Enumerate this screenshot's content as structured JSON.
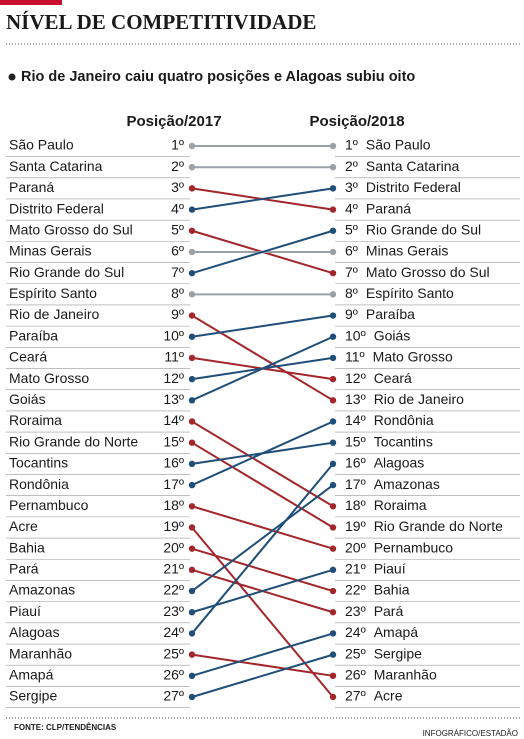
{
  "chart_data": {
    "type": "slope",
    "title": "NÍVEL DE COMPETITIVIDADE",
    "subtitle": "Rio de Janeiro caiu quatro posições e Alagoas subiu oito",
    "left_title": "Posição/2017",
    "right_title": "Posição/2018",
    "ylim": [
      1,
      27
    ],
    "source": "FONTE: CLP/TENDÊNCIAS",
    "credit": "INFOGRÁFICO/ESTADÃO",
    "series": [
      {
        "name": "São Paulo",
        "color": "#9aa0a6",
        "values": [
          1,
          1
        ],
        "value_labels": [
          "1º",
          "1º"
        ]
      },
      {
        "name": "Santa Catarina",
        "color": "#9aa0a6",
        "values": [
          2,
          2
        ],
        "value_labels": [
          "2º",
          "2º"
        ]
      },
      {
        "name": "Paraná",
        "color": "#a3262a",
        "values": [
          3,
          4
        ],
        "value_labels": [
          "3º",
          "4º"
        ]
      },
      {
        "name": "Distrito Federal",
        "color": "#1f4e79",
        "values": [
          4,
          3
        ],
        "value_labels": [
          "4º",
          "3º"
        ]
      },
      {
        "name": "Mato Grosso do Sul",
        "color": "#a3262a",
        "values": [
          5,
          7
        ],
        "value_labels": [
          "5º",
          "7º"
        ]
      },
      {
        "name": "Minas Gerais",
        "color": "#9aa0a6",
        "values": [
          6,
          6
        ],
        "value_labels": [
          "6º",
          "6º"
        ]
      },
      {
        "name": "Rio Grande do Sul",
        "color": "#1f4e79",
        "values": [
          7,
          5
        ],
        "value_labels": [
          "7º",
          "5º"
        ]
      },
      {
        "name": "Espírito Santo",
        "color": "#9aa0a6",
        "values": [
          8,
          8
        ],
        "value_labels": [
          "8º",
          "8º"
        ]
      },
      {
        "name": "Rio de Janeiro",
        "color": "#a3262a",
        "values": [
          9,
          13
        ],
        "value_labels": [
          "9º",
          "13º"
        ]
      },
      {
        "name": "Paraíba",
        "color": "#1f4e79",
        "values": [
          10,
          9
        ],
        "value_labels": [
          "10º",
          "9º"
        ]
      },
      {
        "name": "Ceará",
        "color": "#a3262a",
        "values": [
          11,
          12
        ],
        "value_labels": [
          "11º",
          "12º"
        ]
      },
      {
        "name": "Mato Grosso",
        "color": "#1f4e79",
        "values": [
          12,
          11
        ],
        "value_labels": [
          "12º",
          "11º"
        ]
      },
      {
        "name": "Goiás",
        "color": "#1f4e79",
        "values": [
          13,
          10
        ],
        "value_labels": [
          "13º",
          "10º"
        ]
      },
      {
        "name": "Roraima",
        "color": "#a3262a",
        "values": [
          14,
          18
        ],
        "value_labels": [
          "14º",
          "18º"
        ]
      },
      {
        "name": "Rio Grande do Norte",
        "color": "#a3262a",
        "values": [
          15,
          19
        ],
        "value_labels": [
          "15º",
          "19º"
        ]
      },
      {
        "name": "Tocantins",
        "color": "#1f4e79",
        "values": [
          16,
          15
        ],
        "value_labels": [
          "16º",
          "15º"
        ]
      },
      {
        "name": "Rondônia",
        "color": "#1f4e79",
        "values": [
          17,
          14
        ],
        "value_labels": [
          "17º",
          "14º"
        ]
      },
      {
        "name": "Pernambuco",
        "color": "#a3262a",
        "values": [
          18,
          20
        ],
        "value_labels": [
          "18º",
          "20º"
        ]
      },
      {
        "name": "Acre",
        "color": "#a3262a",
        "values": [
          19,
          27
        ],
        "value_labels": [
          "19º",
          "27º"
        ]
      },
      {
        "name": "Bahia",
        "color": "#a3262a",
        "values": [
          20,
          22
        ],
        "value_labels": [
          "20º",
          "22º"
        ]
      },
      {
        "name": "Pará",
        "color": "#a3262a",
        "values": [
          21,
          23
        ],
        "value_labels": [
          "21º",
          "23º"
        ]
      },
      {
        "name": "Amazonas",
        "color": "#1f4e79",
        "values": [
          22,
          17
        ],
        "value_labels": [
          "22º",
          "17º"
        ]
      },
      {
        "name": "Piauí",
        "color": "#1f4e79",
        "values": [
          23,
          21
        ],
        "value_labels": [
          "23º",
          "21º"
        ]
      },
      {
        "name": "Alagoas",
        "color": "#1f4e79",
        "values": [
          24,
          16
        ],
        "value_labels": [
          "24º",
          "16º"
        ]
      },
      {
        "name": "Maranhão",
        "color": "#a3262a",
        "values": [
          25,
          26
        ],
        "value_labels": [
          "25º",
          "26º"
        ]
      },
      {
        "name": "Amapá",
        "color": "#1f4e79",
        "values": [
          26,
          24
        ],
        "value_labels": [
          "26º",
          "24º"
        ]
      },
      {
        "name": "Sergipe",
        "color": "#1f4e79",
        "values": [
          27,
          25
        ],
        "value_labels": [
          "27º",
          "25º"
        ]
      }
    ]
  }
}
